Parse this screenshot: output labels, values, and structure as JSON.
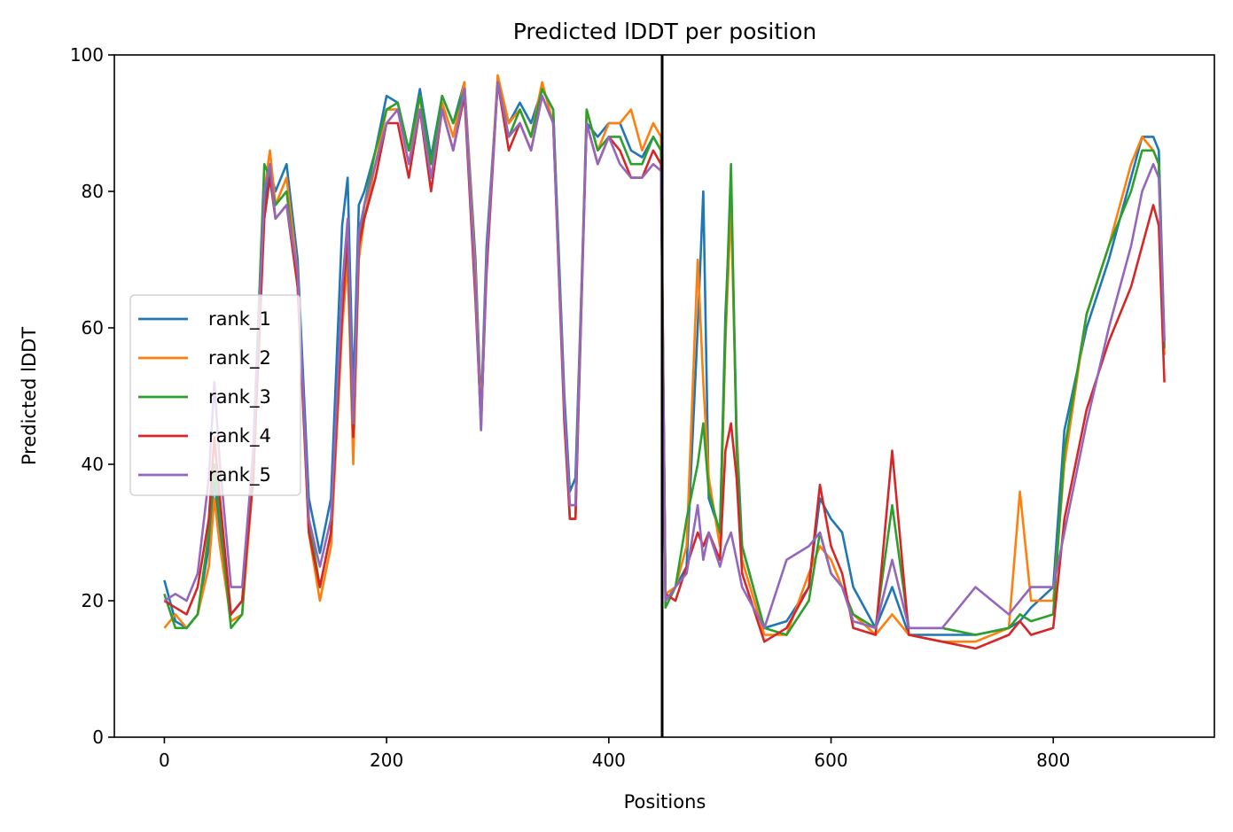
{
  "chart_data": {
    "type": "line",
    "title": "Predicted lDDT per position",
    "xlabel": "Positions",
    "ylabel": "Predicted lDDT",
    "xlim": [
      -45,
      945
    ],
    "ylim": [
      0,
      100
    ],
    "xticks": [
      0,
      200,
      400,
      600,
      800
    ],
    "yticks": [
      0,
      20,
      40,
      60,
      80,
      100
    ],
    "grid": false,
    "legend_position": "center-left",
    "vline_x": 448,
    "vline_color": "#000000",
    "series": [
      {
        "name": "rank_1",
        "color": "#1f77b4",
        "x": [
          0,
          10,
          20,
          30,
          40,
          45,
          50,
          60,
          70,
          80,
          90,
          95,
          100,
          110,
          120,
          130,
          140,
          150,
          160,
          165,
          170,
          175,
          180,
          190,
          200,
          210,
          220,
          230,
          240,
          250,
          260,
          270,
          280,
          285,
          290,
          300,
          310,
          320,
          330,
          340,
          350,
          360,
          365,
          370,
          380,
          390,
          400,
          410,
          420,
          430,
          440,
          447,
          451,
          460,
          470,
          480,
          485,
          490,
          500,
          505,
          510,
          515,
          520,
          540,
          560,
          580,
          590,
          600,
          610,
          620,
          640,
          655,
          670,
          700,
          730,
          760,
          770,
          780,
          800,
          810,
          830,
          850,
          870,
          880,
          890,
          895,
          900
        ],
        "y": [
          23,
          17,
          16,
          18,
          28,
          38,
          30,
          18,
          20,
          40,
          78,
          83,
          80,
          84,
          70,
          35,
          27,
          35,
          75,
          82,
          50,
          78,
          80,
          86,
          94,
          93,
          86,
          95,
          85,
          94,
          90,
          96,
          70,
          48,
          72,
          96,
          90,
          93,
          90,
          95,
          92,
          50,
          36,
          38,
          90,
          88,
          90,
          90,
          86,
          85,
          88,
          86,
          20,
          22,
          25,
          60,
          80,
          35,
          30,
          62,
          80,
          45,
          28,
          16,
          17,
          22,
          35,
          32,
          30,
          22,
          16,
          22,
          15,
          15,
          15,
          16,
          17,
          19,
          22,
          45,
          60,
          70,
          82,
          88,
          88,
          86,
          58
        ]
      },
      {
        "name": "rank_2",
        "color": "#ff7f0e",
        "x": [
          0,
          10,
          20,
          30,
          40,
          45,
          50,
          60,
          70,
          80,
          90,
          95,
          100,
          110,
          120,
          130,
          140,
          150,
          160,
          165,
          170,
          175,
          180,
          190,
          200,
          210,
          220,
          230,
          240,
          250,
          260,
          270,
          280,
          285,
          290,
          300,
          310,
          320,
          330,
          340,
          350,
          360,
          365,
          370,
          380,
          390,
          400,
          410,
          420,
          430,
          440,
          447,
          451,
          460,
          470,
          480,
          485,
          490,
          500,
          505,
          510,
          515,
          520,
          540,
          560,
          580,
          590,
          600,
          610,
          620,
          640,
          655,
          670,
          700,
          730,
          760,
          770,
          780,
          800,
          810,
          830,
          850,
          870,
          880,
          890,
          895,
          900
        ],
        "y": [
          16,
          18,
          16,
          18,
          25,
          35,
          28,
          17,
          18,
          38,
          80,
          86,
          78,
          82,
          68,
          30,
          20,
          28,
          60,
          70,
          40,
          70,
          76,
          84,
          92,
          92,
          84,
          94,
          82,
          93,
          88,
          96,
          68,
          47,
          70,
          97,
          90,
          92,
          88,
          96,
          90,
          48,
          34,
          34,
          92,
          86,
          90,
          90,
          92,
          86,
          90,
          88,
          21,
          22,
          28,
          70,
          52,
          38,
          28,
          58,
          78,
          44,
          26,
          15,
          15,
          24,
          28,
          26,
          22,
          18,
          15,
          18,
          15,
          14,
          14,
          16,
          36,
          20,
          20,
          40,
          62,
          72,
          84,
          88,
          86,
          84,
          56
        ]
      },
      {
        "name": "rank_3",
        "color": "#2ca02c",
        "x": [
          0,
          10,
          20,
          30,
          40,
          45,
          50,
          60,
          70,
          80,
          90,
          95,
          100,
          110,
          120,
          130,
          140,
          150,
          160,
          165,
          170,
          175,
          180,
          190,
          200,
          210,
          220,
          230,
          240,
          250,
          260,
          270,
          280,
          285,
          290,
          300,
          310,
          320,
          330,
          340,
          350,
          360,
          365,
          370,
          380,
          390,
          400,
          410,
          420,
          430,
          440,
          447,
          451,
          460,
          470,
          480,
          485,
          490,
          500,
          505,
          510,
          515,
          520,
          540,
          560,
          580,
          590,
          600,
          610,
          620,
          640,
          655,
          670,
          700,
          730,
          760,
          770,
          780,
          800,
          810,
          830,
          850,
          870,
          880,
          890,
          895,
          900
        ],
        "y": [
          21,
          16,
          16,
          18,
          30,
          40,
          32,
          16,
          18,
          42,
          84,
          82,
          78,
          80,
          66,
          32,
          22,
          30,
          65,
          72,
          44,
          72,
          78,
          86,
          92,
          93,
          86,
          94,
          84,
          94,
          90,
          95,
          66,
          45,
          70,
          96,
          88,
          92,
          88,
          95,
          92,
          48,
          32,
          32,
          92,
          86,
          88,
          88,
          84,
          84,
          88,
          86,
          19,
          22,
          32,
          40,
          46,
          36,
          30,
          60,
          84,
          42,
          28,
          16,
          15,
          20,
          30,
          24,
          22,
          18,
          16,
          34,
          16,
          16,
          15,
          16,
          18,
          17,
          18,
          42,
          62,
          72,
          80,
          86,
          86,
          84,
          57
        ]
      },
      {
        "name": "rank_4",
        "color": "#d62728",
        "x": [
          0,
          10,
          20,
          30,
          40,
          45,
          50,
          60,
          70,
          80,
          90,
          95,
          100,
          110,
          120,
          130,
          140,
          150,
          160,
          165,
          170,
          175,
          180,
          190,
          200,
          210,
          220,
          230,
          240,
          250,
          260,
          270,
          280,
          285,
          290,
          300,
          310,
          320,
          330,
          340,
          350,
          360,
          365,
          370,
          380,
          390,
          400,
          410,
          420,
          430,
          440,
          447,
          451,
          460,
          470,
          480,
          485,
          490,
          500,
          505,
          510,
          515,
          520,
          540,
          560,
          580,
          590,
          600,
          610,
          620,
          640,
          655,
          670,
          700,
          730,
          760,
          770,
          780,
          800,
          810,
          830,
          850,
          870,
          880,
          890,
          895,
          900
        ],
        "y": [
          20,
          19,
          18,
          22,
          32,
          44,
          35,
          18,
          20,
          38,
          76,
          82,
          76,
          78,
          66,
          30,
          22,
          30,
          62,
          74,
          44,
          72,
          76,
          82,
          90,
          90,
          82,
          92,
          80,
          92,
          86,
          94,
          64,
          46,
          68,
          96,
          86,
          90,
          86,
          94,
          90,
          46,
          32,
          32,
          90,
          84,
          88,
          86,
          82,
          82,
          86,
          84,
          21,
          20,
          25,
          30,
          28,
          30,
          26,
          42,
          46,
          38,
          24,
          14,
          16,
          22,
          37,
          28,
          24,
          16,
          15,
          42,
          15,
          14,
          13,
          15,
          17,
          15,
          16,
          32,
          48,
          58,
          66,
          72,
          78,
          75,
          52
        ]
      },
      {
        "name": "rank_5",
        "color": "#9467bd",
        "x": [
          0,
          10,
          20,
          30,
          40,
          45,
          50,
          60,
          70,
          80,
          90,
          95,
          100,
          110,
          120,
          130,
          140,
          150,
          160,
          165,
          170,
          175,
          180,
          190,
          200,
          210,
          220,
          230,
          240,
          250,
          260,
          270,
          280,
          285,
          290,
          300,
          310,
          320,
          330,
          340,
          350,
          360,
          365,
          370,
          380,
          390,
          400,
          410,
          420,
          430,
          440,
          447,
          451,
          460,
          470,
          480,
          485,
          490,
          500,
          505,
          510,
          515,
          520,
          540,
          560,
          580,
          590,
          600,
          610,
          620,
          640,
          655,
          670,
          700,
          730,
          760,
          770,
          780,
          800,
          810,
          830,
          850,
          870,
          880,
          890,
          895,
          900
        ],
        "y": [
          20,
          21,
          20,
          24,
          38,
          52,
          40,
          22,
          22,
          42,
          80,
          84,
          76,
          78,
          68,
          32,
          25,
          32,
          66,
          76,
          46,
          74,
          78,
          84,
          90,
          92,
          84,
          92,
          82,
          92,
          86,
          95,
          66,
          45,
          70,
          96,
          88,
          90,
          86,
          94,
          90,
          48,
          34,
          34,
          90,
          84,
          88,
          84,
          82,
          82,
          84,
          83,
          20,
          22,
          24,
          34,
          26,
          30,
          25,
          28,
          30,
          26,
          22,
          16,
          26,
          28,
          30,
          24,
          22,
          17,
          16,
          26,
          16,
          16,
          22,
          18,
          20,
          22,
          22,
          30,
          46,
          60,
          72,
          80,
          84,
          82,
          58
        ]
      }
    ]
  }
}
